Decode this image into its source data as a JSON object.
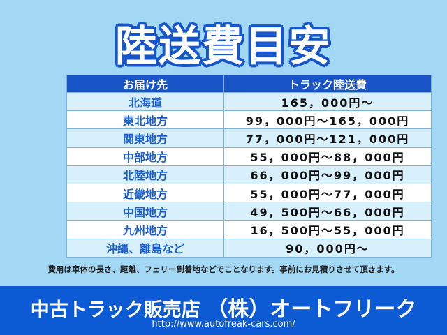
{
  "title": "陸送費目安",
  "table": {
    "headers": [
      "お届け先",
      "トラック陸送費"
    ],
    "rows": [
      {
        "region": "北海道",
        "price": "165，000円～"
      },
      {
        "region": "東北地方",
        "price": "99，000円～165，000円"
      },
      {
        "region": "関東地方",
        "price": "77，000円～121，000円"
      },
      {
        "region": "中部地方",
        "price": "55，000円～88，000円"
      },
      {
        "region": "北陸地方",
        "price": "66，000円～99，000円"
      },
      {
        "region": "近畿地方",
        "price": "55，000円～77，000円"
      },
      {
        "region": "中国地方",
        "price": "49，500円～66，000円"
      },
      {
        "region": "九州地方",
        "price": "16，500円～55，000円"
      },
      {
        "region": "沖縄、離島など",
        "price": "90，000円～"
      }
    ]
  },
  "note": "費用は車体の長さ、距離、フェリー到着地などでことなります。事前にお見積りさせて頂きます。",
  "footer": {
    "shop_type": "中古トラック販売店",
    "company": "（株）オートフリーク",
    "url": "http://www.autofreak-cars.com/"
  },
  "colors": {
    "background": "#a3d8f5",
    "header": "#1a55c8",
    "footer": "#0c5ad4",
    "region_text": "#1a5fd0"
  }
}
